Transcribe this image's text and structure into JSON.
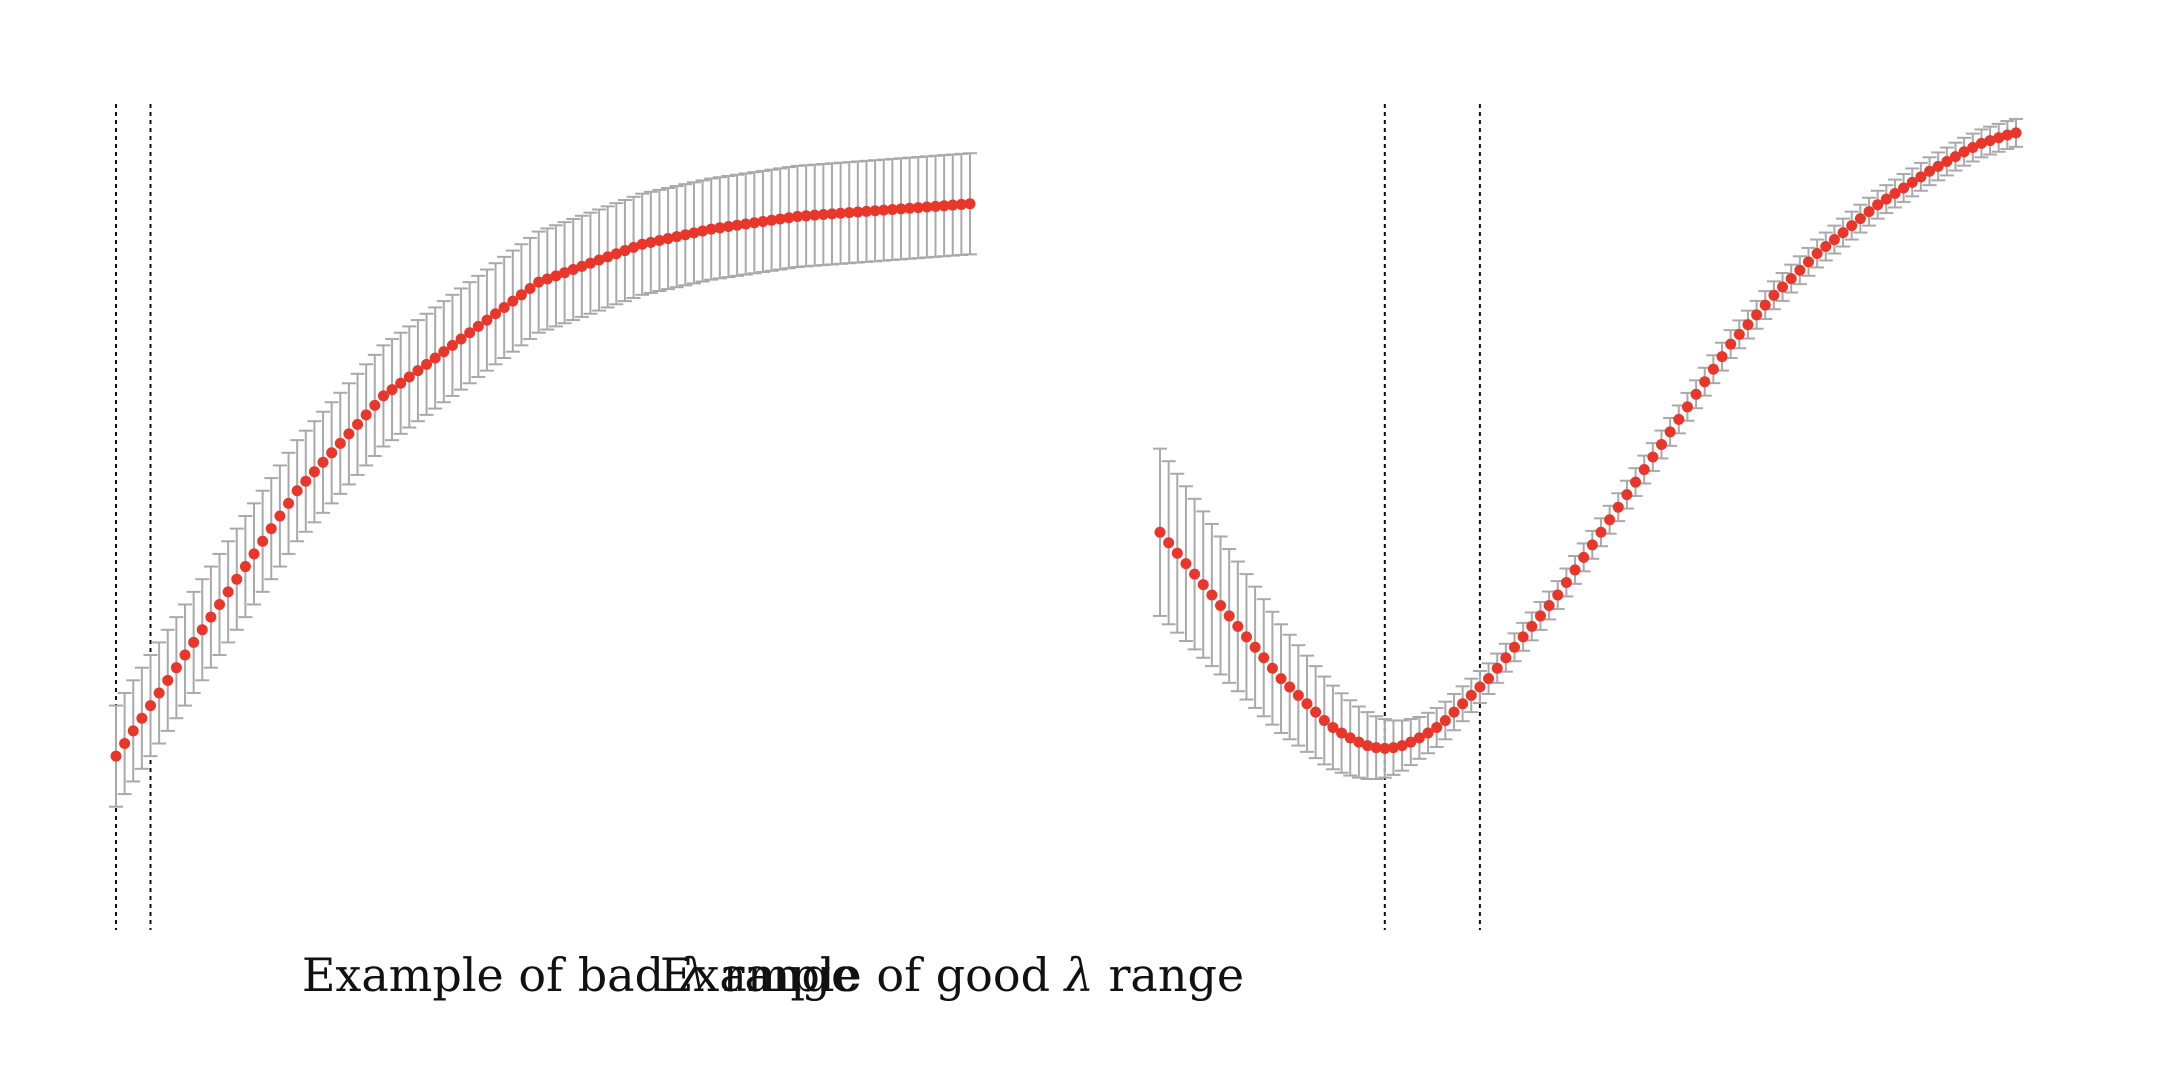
{
  "colors": {
    "point": "#e8362a",
    "error_bar": "#a9a9a9",
    "reference_line": "#111111"
  },
  "chart_data": [
    {
      "type": "scatter",
      "caption_prefix": "Example of bad",
      "caption_symbol": "λ",
      "caption_suffix": "range",
      "axes_visible": false,
      "grid": false,
      "xlim": [
        0,
        99
      ],
      "ylim": [
        0,
        100
      ],
      "x": [
        0,
        1,
        2,
        3,
        4,
        5,
        6,
        7,
        8,
        9,
        10,
        11,
        12,
        13,
        14,
        15,
        16,
        17,
        18,
        19,
        20,
        21,
        22,
        23,
        24,
        25,
        26,
        27,
        28,
        29,
        30,
        31,
        32,
        33,
        34,
        35,
        36,
        37,
        38,
        39,
        40,
        41,
        42,
        43,
        44,
        45,
        46,
        47,
        48,
        49,
        50,
        51,
        52,
        53,
        54,
        55,
        56,
        57,
        58,
        59,
        60,
        61,
        62,
        63,
        64,
        65,
        66,
        67,
        68,
        69,
        70,
        71,
        72,
        73,
        74,
        75,
        76,
        77,
        78,
        79,
        80,
        81,
        82,
        83,
        84,
        85,
        86,
        87,
        88,
        89,
        90,
        91,
        92,
        93,
        94,
        95,
        96,
        97,
        98,
        99
      ],
      "y": [
        12,
        14,
        16,
        18,
        20,
        22,
        24,
        26,
        28,
        30,
        32,
        34,
        36,
        38,
        40,
        42,
        44,
        46,
        48,
        50,
        52,
        54,
        55.5,
        57,
        58.5,
        60,
        61.5,
        63,
        64.5,
        66,
        67.5,
        69,
        70,
        71,
        72,
        73,
        74,
        75,
        76,
        77,
        78,
        79,
        80,
        81,
        82,
        83,
        84,
        85,
        86,
        87,
        87.5,
        88,
        88.5,
        89,
        89.5,
        90,
        90.5,
        91,
        91.5,
        92,
        92.5,
        93,
        93.3,
        93.6,
        93.9,
        94.2,
        94.5,
        94.8,
        95.1,
        95.4,
        95.6,
        95.8,
        96,
        96.2,
        96.4,
        96.6,
        96.8,
        97,
        97.2,
        97.4,
        97.5,
        97.6,
        97.7,
        97.8,
        97.9,
        98,
        98.1,
        98.2,
        98.3,
        98.4,
        98.5,
        98.6,
        98.7,
        98.8,
        98.9,
        99,
        99.1,
        99.2,
        99.3,
        99.4
      ],
      "error": 8,
      "reference_lines_x": [
        0,
        4
      ]
    },
    {
      "type": "scatter",
      "caption_prefix": "Example of good",
      "caption_symbol": "λ",
      "caption_suffix": "range",
      "axes_visible": false,
      "grid": false,
      "xlim": [
        0,
        99
      ],
      "ylim": [
        0,
        100
      ],
      "x": [
        0,
        1,
        2,
        3,
        4,
        5,
        6,
        7,
        8,
        9,
        10,
        11,
        12,
        13,
        14,
        15,
        16,
        17,
        18,
        19,
        20,
        21,
        22,
        23,
        24,
        25,
        26,
        27,
        28,
        29,
        30,
        31,
        32,
        33,
        34,
        35,
        36,
        37,
        38,
        39,
        40,
        41,
        42,
        43,
        44,
        45,
        46,
        47,
        48,
        49,
        50,
        51,
        52,
        53,
        54,
        55,
        56,
        57,
        58,
        59,
        60,
        61,
        62,
        63,
        64,
        65,
        66,
        67,
        68,
        69,
        70,
        71,
        72,
        73,
        74,
        75,
        76,
        77,
        78,
        79,
        80,
        81,
        82,
        83,
        84,
        85,
        86,
        87,
        88,
        89,
        90,
        91,
        92,
        93,
        94,
        95,
        96,
        97,
        98,
        99
      ],
      "y": [
        43,
        41.5,
        40,
        38.5,
        37,
        35.5,
        34,
        32.5,
        31,
        29.5,
        28,
        26.5,
        25,
        23.5,
        22,
        20.8,
        19.6,
        18.4,
        17.2,
        16,
        15,
        14.2,
        13.5,
        12.9,
        12.4,
        12.1,
        12,
        12.1,
        12.4,
        12.9,
        13.5,
        14.2,
        15,
        16,
        17.2,
        18.4,
        19.6,
        20.8,
        22,
        23.5,
        25,
        26.5,
        28,
        29.5,
        31,
        32.5,
        34,
        35.8,
        37.6,
        39.4,
        41.2,
        43,
        44.8,
        46.6,
        48.4,
        50.2,
        52,
        53.8,
        55.6,
        57.4,
        59.2,
        61,
        62.8,
        64.6,
        66.4,
        68.2,
        70,
        71.4,
        72.8,
        74.2,
        75.6,
        77,
        78.2,
        79.4,
        80.6,
        81.8,
        83,
        84,
        85,
        86,
        87,
        88,
        89,
        90,
        90.8,
        91.6,
        92.4,
        93.2,
        94,
        94.8,
        95.5,
        96.2,
        96.9,
        97.6,
        98.2,
        98.8,
        99.2,
        99.6,
        100,
        100.3
      ],
      "error_upper": [
        12,
        11.7,
        11.4,
        11.1,
        10.8,
        10.5,
        10.2,
        9.9,
        9.6,
        9.3,
        9,
        8.7,
        8.4,
        8.1,
        7.8,
        7.5,
        7.2,
        6.9,
        6.6,
        6.3,
        6,
        5.7,
        5.4,
        5.1,
        4.8,
        4.5,
        4.2,
        3.9,
        3.6,
        3.3,
        3,
        2.9,
        2.8,
        2.7,
        2.6,
        2.5,
        2.4,
        2.3,
        2.2,
        2.1,
        2,
        2,
        2,
        2,
        2,
        2,
        2,
        2,
        2,
        2,
        2,
        2,
        2,
        2,
        2,
        2,
        2,
        2,
        2,
        2,
        2,
        2,
        2,
        2,
        2,
        2,
        2,
        2,
        2,
        2,
        2,
        2,
        2,
        2,
        2,
        2,
        2,
        2,
        2,
        2,
        2,
        2,
        2,
        2,
        2,
        2,
        2,
        2,
        2,
        2,
        2,
        2,
        2,
        2,
        2,
        2,
        2,
        2,
        2,
        2
      ],
      "error_lower": [
        12,
        11.7,
        11.4,
        11.1,
        10.8,
        10.5,
        10.2,
        9.9,
        9.6,
        9.3,
        9,
        8.7,
        8.4,
        8.1,
        7.8,
        7.5,
        7.2,
        6.9,
        6.6,
        6.3,
        6,
        5.7,
        5.4,
        5.1,
        4.8,
        4.5,
        4.2,
        3.9,
        3.6,
        3.3,
        3,
        2.9,
        2.8,
        2.7,
        2.6,
        2.5,
        2.4,
        2.3,
        2.2,
        2.1,
        2,
        2,
        2,
        2,
        2,
        2,
        2,
        2,
        2,
        2,
        2,
        2,
        2,
        2,
        2,
        2,
        2,
        2,
        2,
        2,
        2,
        2,
        2,
        2,
        2,
        2,
        2,
        2,
        2,
        2,
        2,
        2,
        2,
        2,
        2,
        2,
        2,
        2,
        2,
        2,
        2,
        2,
        2,
        2,
        2,
        2,
        2,
        2,
        2,
        2,
        2,
        2,
        2,
        2,
        2,
        2,
        2,
        2,
        2,
        2
      ],
      "reference_lines_x": [
        26,
        37
      ]
    }
  ]
}
